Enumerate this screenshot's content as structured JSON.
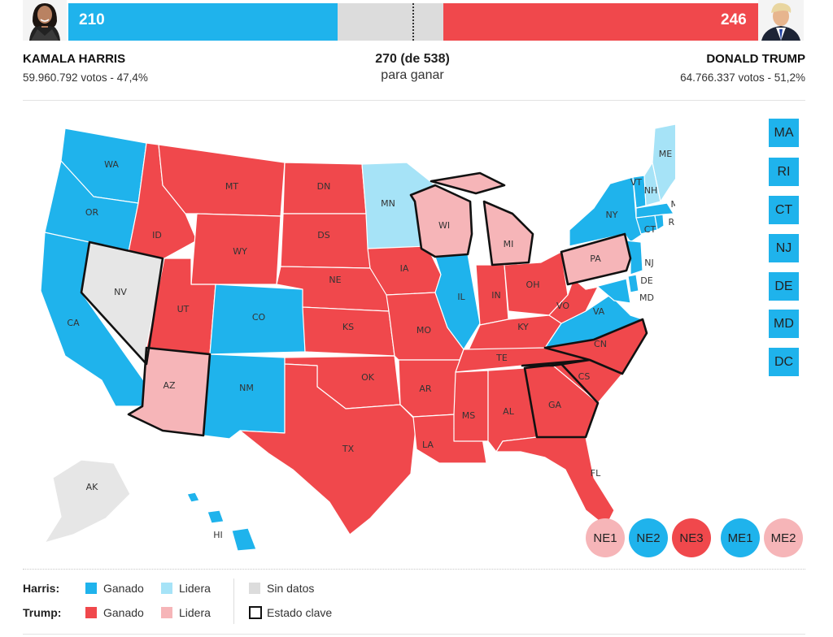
{
  "colors": {
    "harris_won": "#1fb3ec",
    "harris_leads": "#a6e3f7",
    "trump_won": "#f0484c",
    "trump_leads": "#f6b5b8",
    "no_data": "#e6e6e6",
    "key_border": "#111111"
  },
  "harris": {
    "electoral": "210",
    "name": "KAMALA HARRIS",
    "votes": "59.960.792 votos - 47,4%",
    "avatar_icon": "harris-portrait-icon"
  },
  "trump": {
    "electoral": "246",
    "name": "DONALD TRUMP",
    "votes": "64.766.337 votos - 51,2%",
    "avatar_icon": "trump-portrait-icon"
  },
  "threshold": {
    "value": "270 (de 538)",
    "label": "para ganar"
  },
  "states": {
    "WA": {
      "label": "WA",
      "status": "harris_won"
    },
    "OR": {
      "label": "OR",
      "status": "harris_won"
    },
    "CA": {
      "label": "CA",
      "status": "harris_won"
    },
    "NV": {
      "label": "NV",
      "status": "no_data",
      "key": true
    },
    "ID": {
      "label": "ID",
      "status": "trump_won"
    },
    "MT": {
      "label": "MT",
      "status": "trump_won"
    },
    "WY": {
      "label": "WY",
      "status": "trump_won"
    },
    "UT": {
      "label": "UT",
      "status": "trump_won"
    },
    "AZ": {
      "label": "AZ",
      "status": "trump_leads",
      "key": true
    },
    "CO": {
      "label": "CO",
      "status": "harris_won"
    },
    "NM": {
      "label": "NM",
      "status": "harris_won"
    },
    "ND": {
      "label": "DN",
      "status": "trump_won"
    },
    "SD": {
      "label": "DS",
      "status": "trump_won"
    },
    "NE": {
      "label": "NE",
      "status": "trump_won"
    },
    "KS": {
      "label": "KS",
      "status": "trump_won"
    },
    "OK": {
      "label": "OK",
      "status": "trump_won"
    },
    "TX": {
      "label": "TX",
      "status": "trump_won"
    },
    "MN": {
      "label": "MN",
      "status": "harris_leads"
    },
    "IA": {
      "label": "IA",
      "status": "trump_won"
    },
    "MO": {
      "label": "MO",
      "status": "trump_won"
    },
    "AR": {
      "label": "AR",
      "status": "trump_won"
    },
    "LA": {
      "label": "LA",
      "status": "trump_won"
    },
    "WI": {
      "label": "WI",
      "status": "trump_leads",
      "key": true
    },
    "IL": {
      "label": "IL",
      "status": "harris_won"
    },
    "MI": {
      "label": "MI",
      "status": "trump_leads",
      "key": true
    },
    "IN": {
      "label": "IN",
      "status": "trump_won"
    },
    "OH": {
      "label": "OH",
      "status": "trump_won"
    },
    "KY": {
      "label": "KY",
      "status": "trump_won"
    },
    "TN": {
      "label": "TE",
      "status": "trump_won"
    },
    "MS": {
      "label": "MS",
      "status": "trump_won"
    },
    "AL": {
      "label": "AL",
      "status": "trump_won"
    },
    "GA": {
      "label": "GA",
      "status": "trump_won",
      "key": true
    },
    "FL": {
      "label": "FL",
      "status": "trump_won"
    },
    "SC": {
      "label": "CS",
      "status": "trump_won"
    },
    "NC": {
      "label": "CN",
      "status": "trump_won",
      "key": true
    },
    "VA": {
      "label": "VA",
      "status": "harris_won"
    },
    "WV": {
      "label": "VO",
      "status": "trump_won"
    },
    "PA": {
      "label": "PA",
      "status": "trump_leads",
      "key": true
    },
    "NY": {
      "label": "NY",
      "status": "harris_won"
    },
    "NJ": {
      "label": "NJ",
      "status": "harris_won"
    },
    "DE": {
      "label": "DE",
      "status": "harris_won"
    },
    "MD": {
      "label": "MD",
      "status": "harris_won"
    },
    "CT": {
      "label": "CT",
      "status": "harris_won"
    },
    "RI": {
      "label": "RI",
      "status": "harris_won"
    },
    "MA": {
      "label": "MA",
      "status": "harris_won"
    },
    "VT": {
      "label": "VT",
      "status": "harris_won"
    },
    "NH": {
      "label": "NH",
      "status": "harris_leads"
    },
    "ME": {
      "label": "ME",
      "status": "harris_leads"
    },
    "AK": {
      "label": "AK",
      "status": "no_data"
    },
    "HI": {
      "label": "HI",
      "status": "harris_won"
    }
  },
  "small_states": [
    {
      "label": "MA",
      "status": "harris_won"
    },
    {
      "label": "RI",
      "status": "harris_won"
    },
    {
      "label": "CT",
      "status": "harris_won"
    },
    {
      "label": "NJ",
      "status": "harris_won"
    },
    {
      "label": "DE",
      "status": "harris_won"
    },
    {
      "label": "MD",
      "status": "harris_won"
    },
    {
      "label": "DC",
      "status": "harris_won"
    }
  ],
  "districts": [
    {
      "label": "NE1",
      "status": "trump_leads"
    },
    {
      "label": "NE2",
      "status": "harris_won"
    },
    {
      "label": "NE3",
      "status": "trump_won"
    },
    {
      "label": "ME1",
      "status": "harris_won"
    },
    {
      "label": "ME2",
      "status": "trump_leads"
    }
  ],
  "legend": {
    "harris": "Harris:",
    "trump": "Trump:",
    "won": "Ganado",
    "leads": "Lidera",
    "no_data": "Sin datos",
    "key_state": "Estado clave"
  }
}
